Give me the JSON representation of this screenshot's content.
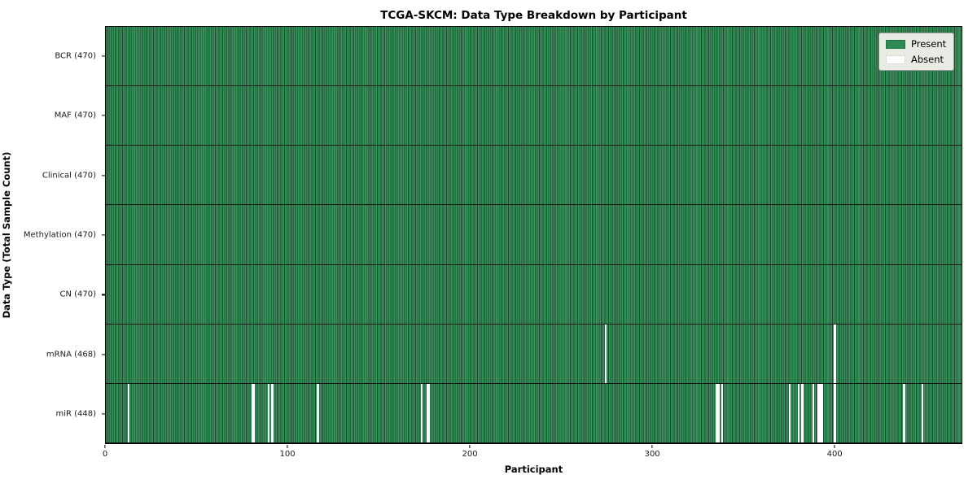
{
  "chart_data": {
    "type": "heatmap",
    "title": "TCGA-SKCM: Data Type Breakdown by Participant",
    "xlabel": "Participant",
    "ylabel": "Data Type (Total Sample Count)",
    "x_ticks": [
      0,
      100,
      200,
      300,
      400
    ],
    "x_range": [
      0,
      470
    ],
    "total_participants": 470,
    "grid": false,
    "legend_position": "upper right",
    "legend": [
      {
        "label": "Present",
        "color": "#2e8b57"
      },
      {
        "label": "Absent",
        "color": "#ffffff"
      }
    ],
    "colors": {
      "present_fill": "#37925c",
      "present_edge": "#1a4a2d",
      "absent_fill": "#ffffff",
      "row_separator": "#101510"
    },
    "rows": [
      {
        "name": "BCR",
        "label": "BCR (470)",
        "count": 470,
        "absent": []
      },
      {
        "name": "MAF",
        "label": "MAF (470)",
        "count": 470,
        "absent": []
      },
      {
        "name": "Clinical",
        "label": "Clinical (470)",
        "count": 470,
        "absent": []
      },
      {
        "name": "Methylation",
        "label": "Methylation (470)",
        "count": 470,
        "absent": []
      },
      {
        "name": "CN",
        "label": "CN (470)",
        "count": 470,
        "absent": []
      },
      {
        "name": "mRNA",
        "label": "mRNA (468)",
        "count": 468,
        "absent": [
          274,
          400
        ]
      },
      {
        "name": "miR",
        "label": "miR (448)",
        "count": 448,
        "absent": [
          12,
          80,
          81,
          89,
          91,
          116,
          173,
          176,
          177,
          335,
          336,
          338,
          375,
          380,
          382,
          388,
          391,
          392,
          393,
          400,
          438,
          448
        ]
      }
    ]
  }
}
